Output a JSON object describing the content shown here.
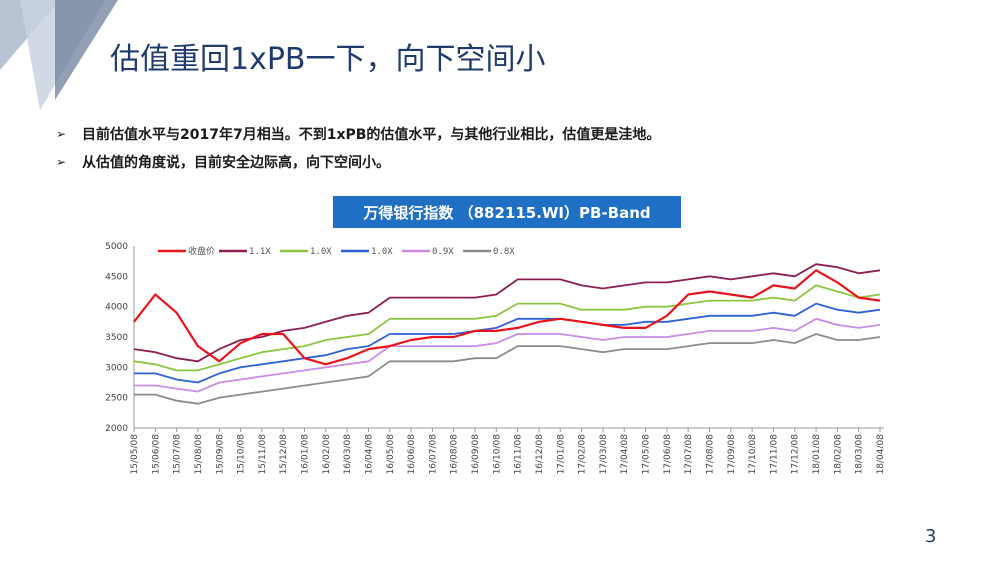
{
  "slide": {
    "title": "估值重回1xPB一下，向下空间小",
    "bullets": [
      "目前估值水平与2017年7月相当。不到1xPB的估值水平，与其他行业相比，估值更是洼地。",
      "从估值的角度说，目前安全边际高，向下空间小。"
    ],
    "page_number": "3"
  },
  "chart_data": {
    "type": "line",
    "title": "万得银行指数 （882115.WI）PB-Band",
    "xlabel": "",
    "ylabel": "",
    "ylim": [
      2000,
      5000
    ],
    "yticks": [
      2000,
      2500,
      3000,
      3500,
      4000,
      4500,
      5000
    ],
    "grid": false,
    "legend_position": "top",
    "categories": [
      "15/05/08",
      "15/06/08",
      "15/07/08",
      "15/08/08",
      "15/09/08",
      "15/10/08",
      "15/11/08",
      "15/12/08",
      "16/01/08",
      "16/02/08",
      "16/03/08",
      "16/04/08",
      "16/05/08",
      "16/06/08",
      "16/07/08",
      "16/08/08",
      "16/09/08",
      "16/10/08",
      "16/11/08",
      "16/12/08",
      "17/01/08",
      "17/02/08",
      "17/03/08",
      "17/04/08",
      "17/05/08",
      "17/06/08",
      "17/07/08",
      "17/08/08",
      "17/09/08",
      "17/10/08",
      "17/11/08",
      "17/12/08",
      "18/01/08",
      "18/02/08",
      "18/03/08",
      "18/04/08"
    ],
    "series": [
      {
        "name": "收盘价",
        "color": "#e8141b",
        "width": 2.2,
        "values": [
          3750,
          4200,
          3900,
          3350,
          3100,
          3400,
          3550,
          3550,
          3150,
          3050,
          3150,
          3300,
          3350,
          3450,
          3500,
          3500,
          3600,
          3600,
          3650,
          3750,
          3800,
          3750,
          3700,
          3650,
          3650,
          3850,
          4200,
          4250,
          4200,
          4150,
          4350,
          4300,
          4600,
          4400,
          4150,
          4100
        ]
      },
      {
        "name": "1.1X",
        "color": "#8b1e52",
        "width": 1.8,
        "values": [
          3300,
          3250,
          3150,
          3100,
          3300,
          3450,
          3500,
          3600,
          3650,
          3750,
          3850,
          3900,
          4150,
          4150,
          4150,
          4150,
          4150,
          4200,
          4450,
          4450,
          4450,
          4350,
          4300,
          4350,
          4400,
          4400,
          4450,
          4500,
          4450,
          4500,
          4550,
          4500,
          4700,
          4650,
          4550,
          4600
        ]
      },
      {
        "name": "1.0X",
        "color": "#8cc63f",
        "width": 1.8,
        "values": [
          3100,
          3050,
          2950,
          2950,
          3050,
          3150,
          3250,
          3300,
          3350,
          3450,
          3500,
          3550,
          3800,
          3800,
          3800,
          3800,
          3800,
          3850,
          4050,
          4050,
          4050,
          3950,
          3950,
          3950,
          4000,
          4000,
          4050,
          4100,
          4100,
          4100,
          4150,
          4100,
          4350,
          4250,
          4150,
          4200
        ]
      },
      {
        "name": "1.0X",
        "color": "#2f62d6",
        "width": 1.8,
        "values": [
          2900,
          2900,
          2800,
          2750,
          2900,
          3000,
          3050,
          3100,
          3150,
          3200,
          3300,
          3350,
          3550,
          3550,
          3550,
          3550,
          3600,
          3650,
          3800,
          3800,
          3800,
          3750,
          3700,
          3700,
          3750,
          3750,
          3800,
          3850,
          3850,
          3850,
          3900,
          3850,
          4050,
          3950,
          3900,
          3950
        ]
      },
      {
        "name": "0.9X",
        "color": "#c88be6",
        "width": 1.8,
        "values": [
          2700,
          2700,
          2650,
          2600,
          2750,
          2800,
          2850,
          2900,
          2950,
          3000,
          3050,
          3100,
          3350,
          3350,
          3350,
          3350,
          3350,
          3400,
          3550,
          3550,
          3550,
          3500,
          3450,
          3500,
          3500,
          3500,
          3550,
          3600,
          3600,
          3600,
          3650,
          3600,
          3800,
          3700,
          3650,
          3700
        ]
      },
      {
        "name": "0.8X",
        "color": "#8c8c8c",
        "width": 1.8,
        "values": [
          2550,
          2550,
          2450,
          2400,
          2500,
          2550,
          2600,
          2650,
          2700,
          2750,
          2800,
          2850,
          3100,
          3100,
          3100,
          3100,
          3150,
          3150,
          3350,
          3350,
          3350,
          3300,
          3250,
          3300,
          3300,
          3300,
          3350,
          3400,
          3400,
          3400,
          3450,
          3400,
          3550,
          3450,
          3450,
          3500
        ]
      }
    ]
  }
}
